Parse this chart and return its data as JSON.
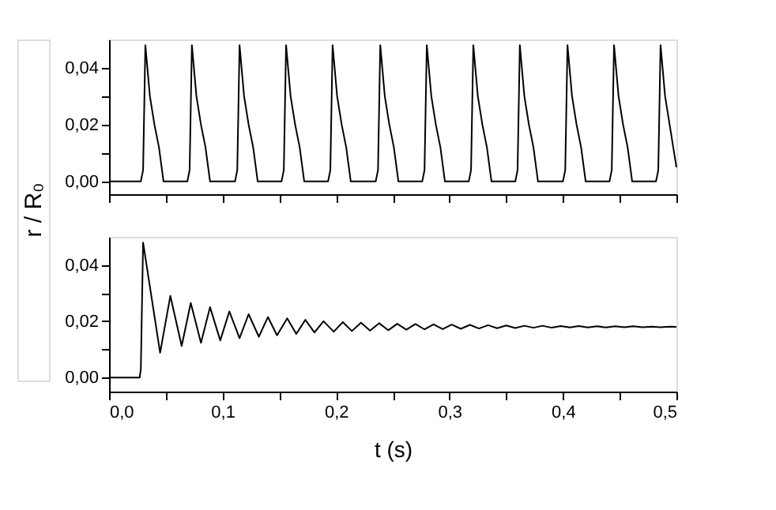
{
  "chart_data": [
    {
      "type": "line",
      "ylabel": "r / R₀",
      "color": "#000000",
      "tick_labels": "y",
      "xlim": [
        0,
        0.5
      ],
      "ylim": [
        -0.0045,
        0.05
      ],
      "xticks": [
        0,
        0.05,
        0.1,
        0.15,
        0.2,
        0.25,
        0.3,
        0.35,
        0.4,
        0.45,
        0.5
      ],
      "yticks": [
        {
          "value": 0,
          "label": "0,00"
        },
        {
          "value": 0.01,
          "label": null
        },
        {
          "value": 0.02,
          "label": "0,02"
        },
        {
          "value": 0.03,
          "label": null
        },
        {
          "value": 0.04,
          "label": "0,04"
        }
      ],
      "x": [
        0,
        0.028,
        0.029,
        0.03,
        0.032,
        0.036,
        0.04,
        0.044,
        0.048,
        0.069,
        0.07,
        0.071,
        0.073,
        0.077,
        0.081,
        0.085,
        0.089,
        0.111,
        0.112,
        0.113,
        0.115,
        0.119,
        0.123,
        0.127,
        0.131,
        0.152,
        0.153,
        0.154,
        0.156,
        0.16,
        0.164,
        0.168,
        0.172,
        0.193,
        0.194,
        0.195,
        0.197,
        0.201,
        0.205,
        0.209,
        0.213,
        0.235,
        0.236,
        0.237,
        0.239,
        0.243,
        0.247,
        0.251,
        0.255,
        0.276,
        0.277,
        0.278,
        0.28,
        0.284,
        0.288,
        0.292,
        0.296,
        0.317,
        0.318,
        0.319,
        0.321,
        0.325,
        0.329,
        0.333,
        0.337,
        0.358,
        0.359,
        0.36,
        0.362,
        0.366,
        0.37,
        0.374,
        0.378,
        0.4,
        0.401,
        0.402,
        0.404,
        0.408,
        0.412,
        0.416,
        0.42,
        0.441,
        0.442,
        0.443,
        0.445,
        0.449,
        0.453,
        0.457,
        0.461,
        0.482,
        0.483,
        0.484,
        0.486,
        0.49,
        0.494,
        0.5
      ],
      "values": [
        0,
        0,
        0.002,
        0.004,
        0.048,
        0.03,
        0.02,
        0.012,
        0,
        0,
        0.002,
        0.004,
        0.048,
        0.03,
        0.02,
        0.012,
        0,
        0,
        0.002,
        0.004,
        0.048,
        0.03,
        0.02,
        0.012,
        0,
        0,
        0.002,
        0.004,
        0.048,
        0.03,
        0.02,
        0.012,
        0,
        0,
        0.002,
        0.004,
        0.048,
        0.03,
        0.02,
        0.012,
        0,
        0,
        0.002,
        0.004,
        0.048,
        0.03,
        0.02,
        0.012,
        0,
        0,
        0.002,
        0.004,
        0.048,
        0.03,
        0.02,
        0.012,
        0,
        0,
        0.002,
        0.004,
        0.048,
        0.03,
        0.02,
        0.012,
        0,
        0,
        0.002,
        0.004,
        0.048,
        0.03,
        0.02,
        0.012,
        0,
        0,
        0.002,
        0.004,
        0.048,
        0.03,
        0.02,
        0.012,
        0,
        0,
        0.002,
        0.004,
        0.048,
        0.03,
        0.02,
        0.012,
        0,
        0,
        0.002,
        0.004,
        0.048,
        0.03,
        0.02,
        0.005
      ]
    },
    {
      "type": "line",
      "xlabel": "t (s)",
      "color": "#000000",
      "xlim": [
        0,
        0.5
      ],
      "ylim": [
        -0.005,
        0.05
      ],
      "xticks": [
        {
          "value": 0,
          "label": "0,0"
        },
        {
          "value": 0.05,
          "label": null
        },
        {
          "value": 0.1,
          "label": "0,1"
        },
        {
          "value": 0.15,
          "label": null
        },
        {
          "value": 0.2,
          "label": "0,2"
        },
        {
          "value": 0.25,
          "label": null
        },
        {
          "value": 0.3,
          "label": "0,3"
        },
        {
          "value": 0.35,
          "label": null
        },
        {
          "value": 0.4,
          "label": "0,4"
        },
        {
          "value": 0.45,
          "label": null
        },
        {
          "value": 0.5,
          "label": "0,5"
        }
      ],
      "yticks": [
        {
          "value": 0,
          "label": "0,00"
        },
        {
          "value": 0.01,
          "label": null
        },
        {
          "value": 0.02,
          "label": "0,02"
        },
        {
          "value": 0.03,
          "label": null
        },
        {
          "value": 0.04,
          "label": "0,04"
        }
      ],
      "x": [
        0,
        0.027,
        0.028,
        0.03,
        0.045,
        0.054,
        0.064,
        0.072,
        0.081,
        0.089,
        0.098,
        0.106,
        0.115,
        0.123,
        0.132,
        0.14,
        0.148,
        0.157,
        0.165,
        0.173,
        0.181,
        0.189,
        0.198,
        0.206,
        0.214,
        0.222,
        0.23,
        0.238,
        0.246,
        0.254,
        0.262,
        0.27,
        0.278,
        0.286,
        0.294,
        0.302,
        0.31,
        0.318,
        0.326,
        0.334,
        0.342,
        0.35,
        0.358,
        0.366,
        0.374,
        0.382,
        0.39,
        0.398,
        0.406,
        0.414,
        0.422,
        0.43,
        0.438,
        0.446,
        0.454,
        0.462,
        0.47,
        0.478,
        0.486,
        0.494,
        0.5
      ],
      "values": [
        0,
        0,
        0.003,
        0.048,
        0.0088,
        0.029,
        0.0112,
        0.0265,
        0.0123,
        0.025,
        0.0132,
        0.0235,
        0.014,
        0.0225,
        0.0145,
        0.0215,
        0.015,
        0.021,
        0.0155,
        0.0205,
        0.016,
        0.02,
        0.0163,
        0.0197,
        0.0165,
        0.0195,
        0.0167,
        0.0193,
        0.0168,
        0.0191,
        0.017,
        0.019,
        0.0171,
        0.0189,
        0.0172,
        0.0188,
        0.0173,
        0.0187,
        0.0174,
        0.0186,
        0.0175,
        0.0185,
        0.0176,
        0.0184,
        0.0177,
        0.0184,
        0.0177,
        0.0183,
        0.0178,
        0.0183,
        0.0178,
        0.0182,
        0.0178,
        0.0182,
        0.0179,
        0.0182,
        0.0179,
        0.0181,
        0.0179,
        0.0181,
        0.018
      ]
    }
  ]
}
